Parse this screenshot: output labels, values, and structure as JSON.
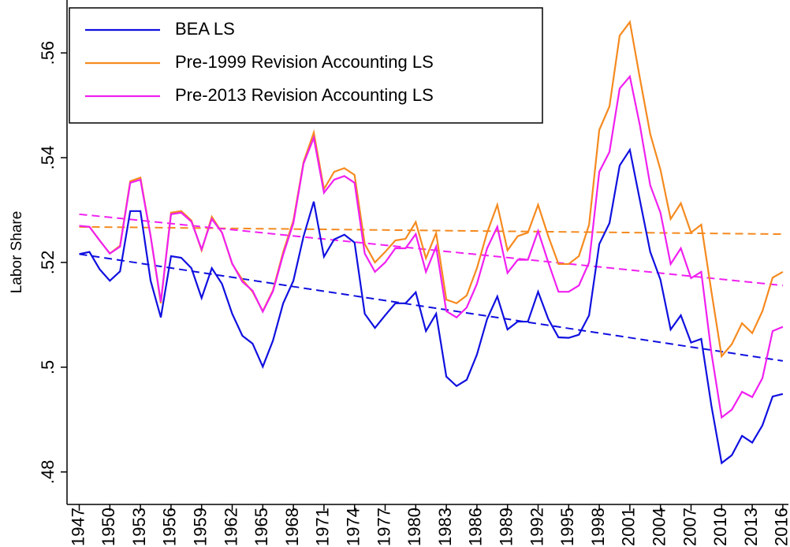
{
  "chart_data": {
    "type": "line",
    "y_label": "Labor Share",
    "x": [
      1947,
      1948,
      1949,
      1950,
      1951,
      1952,
      1953,
      1954,
      1955,
      1956,
      1957,
      1958,
      1959,
      1960,
      1961,
      1962,
      1963,
      1964,
      1965,
      1966,
      1967,
      1968,
      1969,
      1970,
      1971,
      1972,
      1973,
      1974,
      1975,
      1976,
      1977,
      1978,
      1979,
      1980,
      1981,
      1982,
      1983,
      1984,
      1985,
      1986,
      1987,
      1988,
      1989,
      1990,
      1991,
      1992,
      1993,
      1994,
      1995,
      1996,
      1997,
      1998,
      1999,
      2000,
      2001,
      2002,
      2003,
      2004,
      2005,
      2006,
      2007,
      2008,
      2009,
      2010,
      2011,
      2012,
      2013,
      2014,
      2015,
      2016
    ],
    "series": [
      {
        "name": "BEA LS",
        "color": "#1010e0",
        "values": [
          0.5216,
          0.522,
          0.5187,
          0.5165,
          0.5183,
          0.5298,
          0.5298,
          0.5165,
          0.5095,
          0.5212,
          0.5209,
          0.5189,
          0.5132,
          0.5189,
          0.5159,
          0.5102,
          0.506,
          0.5045,
          0.5001,
          0.5051,
          0.5122,
          0.5165,
          0.525,
          0.5316,
          0.5211,
          0.5244,
          0.5253,
          0.5238,
          0.5102,
          0.5075,
          0.5099,
          0.5122,
          0.5122,
          0.5143,
          0.5069,
          0.5102,
          0.4982,
          0.4964,
          0.4976,
          0.5024,
          0.5092,
          0.5135,
          0.5072,
          0.5087,
          0.5087,
          0.5144,
          0.5092,
          0.5057,
          0.5056,
          0.5062,
          0.5099,
          0.5235,
          0.5275,
          0.5385,
          0.5415,
          0.5317,
          0.522,
          0.5167,
          0.5072,
          0.5099,
          0.5047,
          0.5054,
          0.4926,
          0.4817,
          0.4832,
          0.4869,
          0.4856,
          0.4889,
          0.4944,
          0.4949
        ],
        "trend": [
          0.5216,
          0.5012
        ]
      },
      {
        "name": "Pre-1999 Revision Accounting LS",
        "color": "#f58a1f",
        "values": [
          0.5268,
          0.5268,
          0.5242,
          0.5217,
          0.5232,
          0.5355,
          0.5362,
          0.525,
          0.5122,
          0.5295,
          0.5298,
          0.528,
          0.5223,
          0.5287,
          0.5257,
          0.5197,
          0.5167,
          0.5144,
          0.5107,
          0.5147,
          0.522,
          0.528,
          0.5392,
          0.5448,
          0.534,
          0.5373,
          0.538,
          0.5367,
          0.5235,
          0.52,
          0.522,
          0.5242,
          0.5245,
          0.5277,
          0.5208,
          0.5256,
          0.5129,
          0.5122,
          0.5137,
          0.5189,
          0.5257,
          0.531,
          0.5223,
          0.525,
          0.5257,
          0.531,
          0.525,
          0.5197,
          0.5197,
          0.5212,
          0.5272,
          0.5453,
          0.5498,
          0.5633,
          0.5659,
          0.555,
          0.5445,
          0.5377,
          0.5283,
          0.5313,
          0.5257,
          0.5272,
          0.5144,
          0.5021,
          0.5044,
          0.5084,
          0.5065,
          0.5107,
          0.5171,
          0.5182
        ],
        "trend": [
          0.5268,
          0.5254
        ]
      },
      {
        "name": "Pre-2013 Revision Accounting LS",
        "color": "#f020f0",
        "values": [
          0.527,
          0.5268,
          0.5242,
          0.5217,
          0.523,
          0.5352,
          0.5358,
          0.525,
          0.5125,
          0.5292,
          0.5295,
          0.5278,
          0.5225,
          0.5283,
          0.5257,
          0.5198,
          0.5163,
          0.5146,
          0.5106,
          0.5145,
          0.5215,
          0.5275,
          0.5389,
          0.5438,
          0.5333,
          0.5358,
          0.5365,
          0.5352,
          0.5217,
          0.5182,
          0.52,
          0.5227,
          0.5227,
          0.5254,
          0.5182,
          0.523,
          0.5107,
          0.5095,
          0.5114,
          0.5159,
          0.5227,
          0.5268,
          0.518,
          0.5205,
          0.5205,
          0.526,
          0.52,
          0.5144,
          0.5144,
          0.5156,
          0.52,
          0.5373,
          0.5411,
          0.5532,
          0.5555,
          0.546,
          0.5347,
          0.5295,
          0.5197,
          0.5227,
          0.517,
          0.5182,
          0.5027,
          0.4904,
          0.4919,
          0.4953,
          0.4943,
          0.4979,
          0.5069,
          0.5077
        ],
        "trend": [
          0.5292,
          0.5156
        ]
      }
    ],
    "xlim": [
      1945.8,
      2016.55
    ],
    "ylim": [
      0.4738,
      0.5701
    ],
    "xticks": [
      1947,
      1950,
      1953,
      1956,
      1959,
      1962,
      1965,
      1968,
      1971,
      1974,
      1977,
      1980,
      1983,
      1986,
      1989,
      1992,
      1995,
      1998,
      2001,
      2004,
      2007,
      2010,
      2013,
      2016
    ],
    "yticks": [
      {
        "value": 0.48,
        "label": ".48"
      },
      {
        "value": 0.5,
        "label": ".5"
      },
      {
        "value": 0.52,
        "label": ".52"
      },
      {
        "value": 0.54,
        "label": ".54"
      },
      {
        "value": 0.56,
        "label": ".56"
      }
    ],
    "legend": "top-left"
  }
}
